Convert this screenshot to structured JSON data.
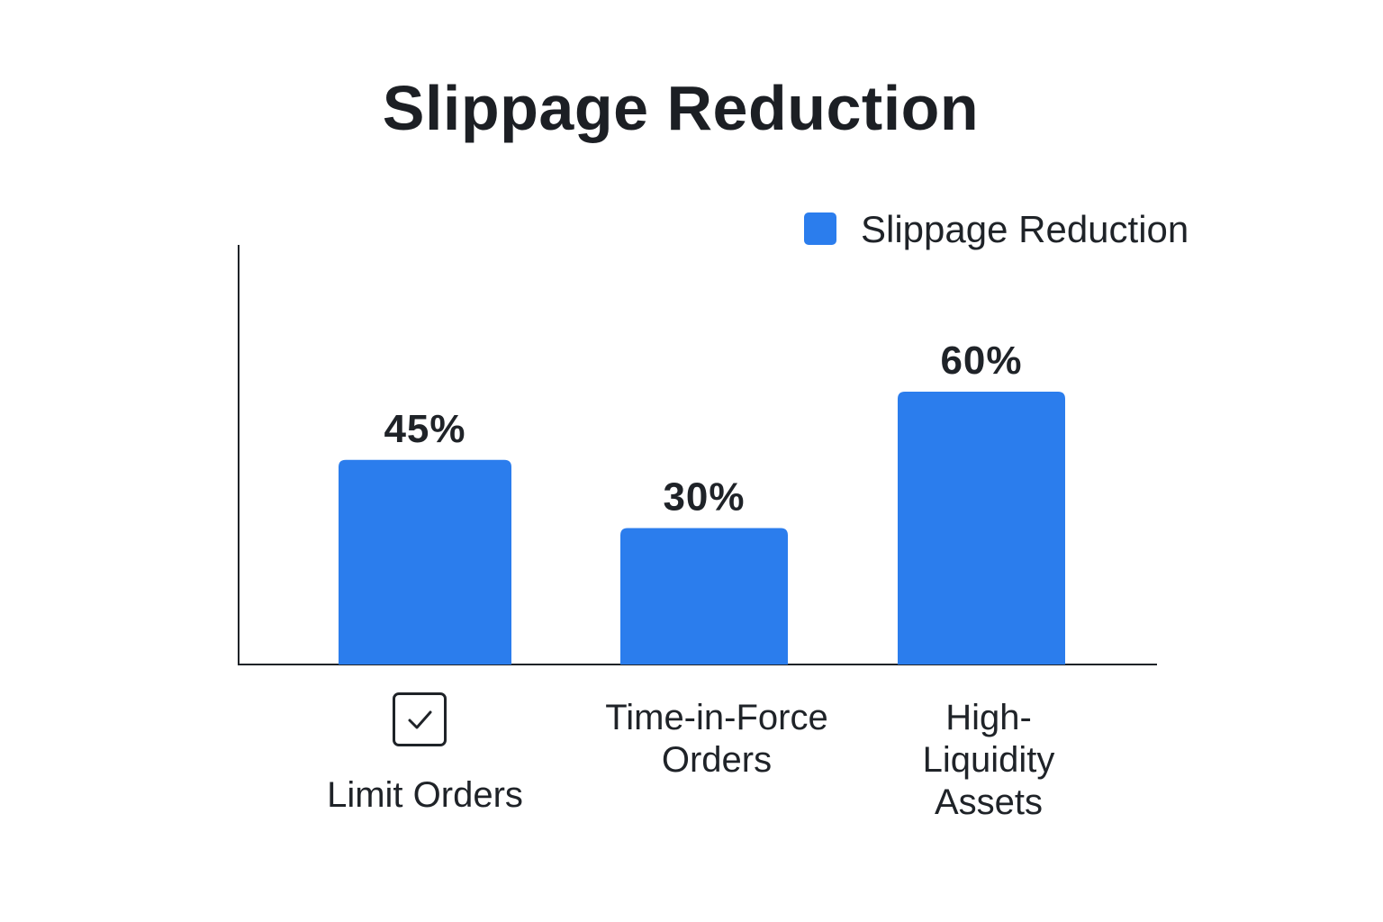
{
  "chart_data": {
    "type": "bar",
    "title": "Slippage Reduction",
    "categories": [
      "Limit Orders",
      "Time-in-Force Orders",
      "High-Liquidity Assets"
    ],
    "category_lines": [
      [
        "Limit Orders"
      ],
      [
        "Time-in-Force",
        "Orders"
      ],
      [
        "High-",
        "Liquidity",
        "Assets"
      ]
    ],
    "series": [
      {
        "name": "Slippage Reduction",
        "values": [
          45,
          30,
          60
        ],
        "value_labels": [
          "45%",
          "30%",
          "60%"
        ],
        "color": "#2b7ded"
      }
    ],
    "legend_position": "top-right",
    "grid": false,
    "xlabel": "",
    "ylabel": "",
    "icons": {
      "limit_orders": "checkbox-checked-icon"
    }
  }
}
